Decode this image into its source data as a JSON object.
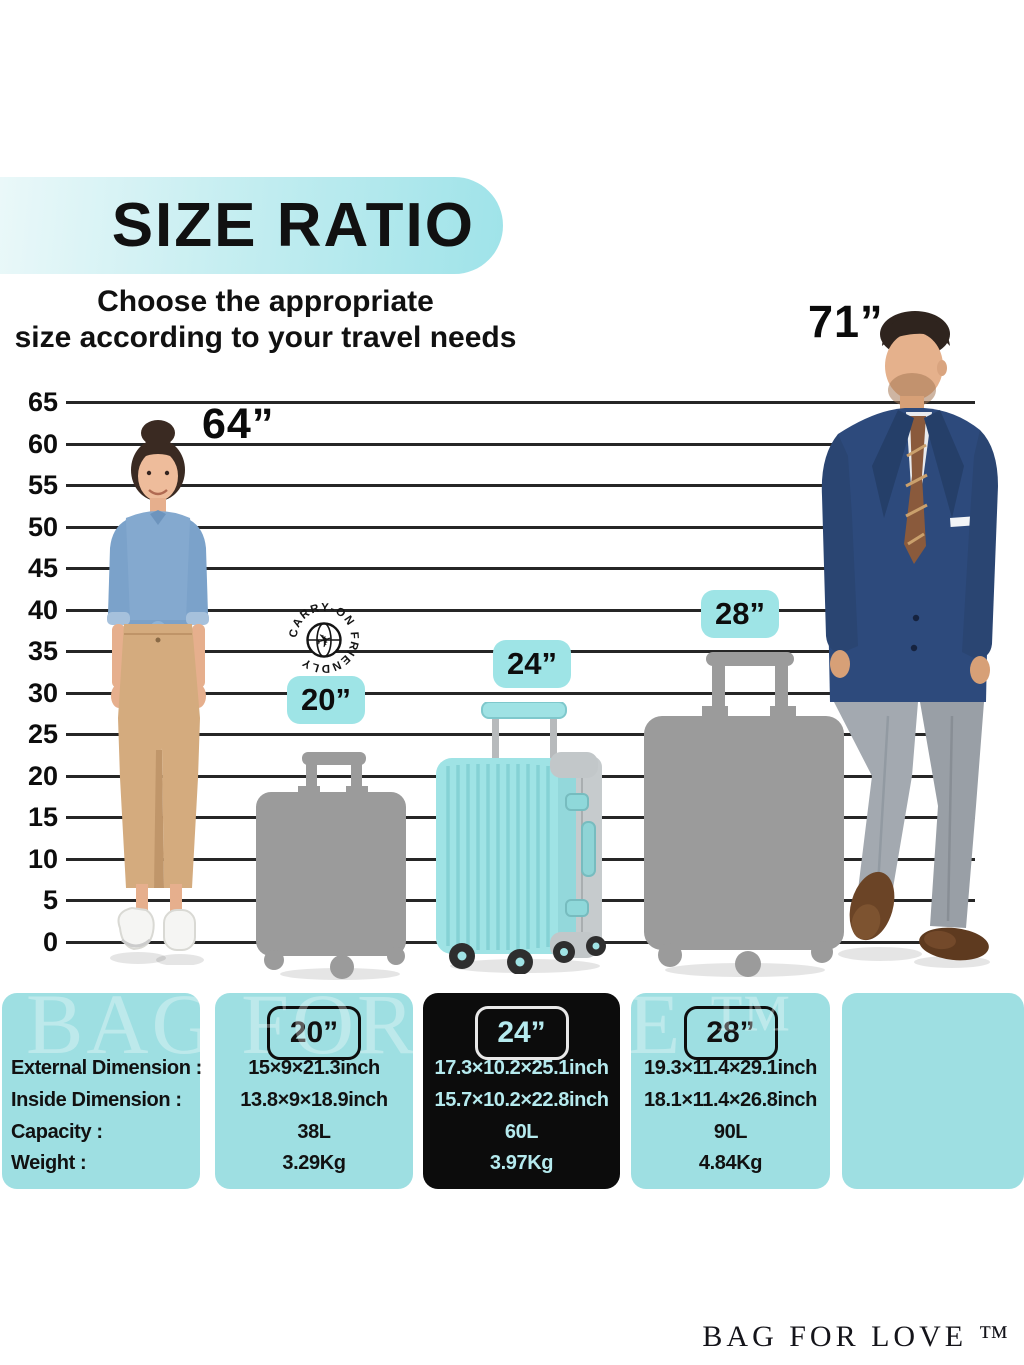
{
  "header": {
    "title": "SIZE RATIO",
    "subtitle_line1": "Choose the appropriate",
    "subtitle_line2": "size according to your travel needs"
  },
  "ruler": {
    "ticks": [
      "65",
      "60",
      "55",
      "50",
      "45",
      "40",
      "35",
      "30",
      "25",
      "20",
      "15",
      "10",
      "5",
      "0"
    ]
  },
  "figures": {
    "woman_height_label": "64”",
    "man_height_label": "71”"
  },
  "stamp": {
    "text": "CARRY-ON FRIENDLY",
    "icon": "airplane-globe-icon"
  },
  "suitcases": [
    {
      "label": "20”"
    },
    {
      "label": "24”"
    },
    {
      "label": "28”"
    }
  ],
  "spec_table": {
    "row_labels": [
      "External Dimension :",
      "Inside Dimension :",
      "Capacity :",
      "Weight :"
    ],
    "columns": [
      {
        "size": "20”",
        "rows": [
          "15×9×21.3inch",
          "13.8×9×18.9inch",
          "38L",
          "3.29Kg"
        ],
        "highlight": false
      },
      {
        "size": "24”",
        "rows": [
          "17.3×10.2×25.1inch",
          "15.7×10.2×22.8inch",
          "60L",
          "3.97Kg"
        ],
        "highlight": true
      },
      {
        "size": "28”",
        "rows": [
          "19.3×11.4×29.1inch",
          "18.1×11.4×26.8inch",
          "90L",
          "4.84Kg"
        ],
        "highlight": false
      }
    ]
  },
  "watermark": "BAG FOR LOVE ™",
  "brand": "BAG FOR LOVE ™",
  "colors": {
    "teal_card": "#9edfe2",
    "teal_badge": "#9ee4e6",
    "banner_gradient_start": "#eaf8f9",
    "banner_gradient_end": "#9fe3e9",
    "black_card": "#0c0c0c",
    "dark_card_text": "#b5eaee",
    "suitcase_teal": "#9fe3e5",
    "silhouette_gray": "#9b9b9b"
  }
}
